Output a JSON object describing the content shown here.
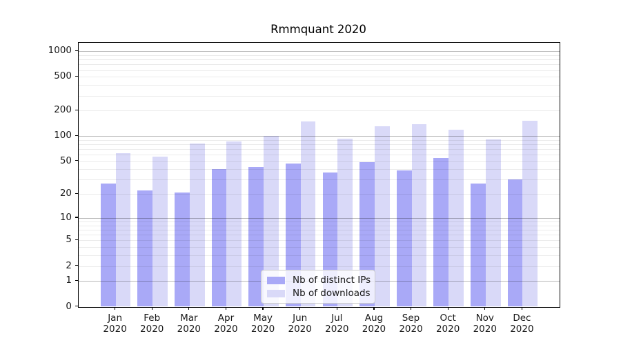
{
  "chart_data": {
    "type": "bar",
    "title": "Rmmquant 2020",
    "categories": [
      "Jan",
      "Feb",
      "Mar",
      "Apr",
      "May",
      "Jun",
      "Jul",
      "Aug",
      "Sep",
      "Oct",
      "Nov",
      "Dec"
    ],
    "category_year": "2020",
    "series": [
      {
        "name": "Nb of distinct IPs",
        "color": "#a9a9f7",
        "values": [
          27,
          22,
          21,
          40,
          43,
          47,
          37,
          49,
          39,
          55,
          27,
          30
        ]
      },
      {
        "name": "Nb of downloads",
        "color": "#d9d9f8",
        "values": [
          63,
          57,
          82,
          87,
          100,
          150,
          93,
          130,
          137,
          118,
          92,
          152
        ]
      }
    ],
    "yscale": "log10(1+v)",
    "y_ticks": [
      0,
      1,
      2,
      5,
      10,
      20,
      50,
      100,
      200,
      500,
      1000
    ],
    "ylim": [
      0,
      1250
    ],
    "grid": {
      "major_at": [
        1,
        10,
        100,
        1000
      ],
      "minor_at_mantissas": [
        2,
        3,
        4,
        5,
        6,
        7,
        8,
        9
      ],
      "position": "above-bars"
    },
    "legend": {
      "position": "lower-center",
      "labels": [
        "Nb of distinct IPs",
        "Nb of downloads"
      ]
    }
  },
  "colors": {
    "background": "#ffffff",
    "bar_dark": "#a9a9f7",
    "bar_light": "#d9d9f8",
    "grid_major": "rgba(0,0,0,0.28)",
    "grid_minor": "rgba(0,0,0,0.08)",
    "spine": "#000000",
    "text": "#1a1a1a"
  }
}
